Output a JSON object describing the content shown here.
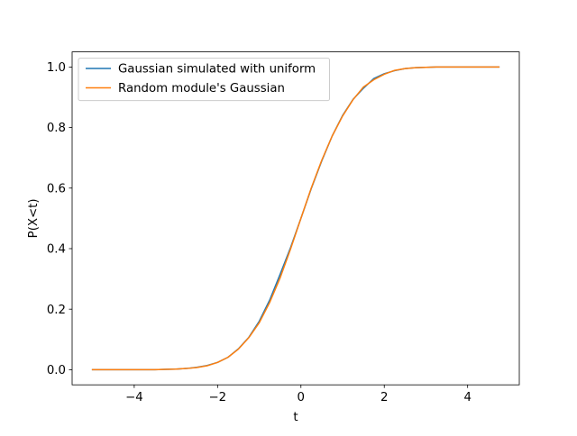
{
  "chart_data": {
    "type": "line",
    "title": "",
    "xlabel": "t",
    "ylabel": "P(X<t)",
    "xlim": [
      -5.49,
      5.24
    ],
    "ylim": [
      -0.05,
      1.05
    ],
    "x_ticks": [
      -4,
      -2,
      0,
      2,
      4
    ],
    "x_tick_labels": [
      "−4",
      "−2",
      "0",
      "2",
      "4"
    ],
    "y_ticks": [
      0.0,
      0.2,
      0.4,
      0.6,
      0.8,
      1.0
    ],
    "y_tick_labels": [
      "0.0",
      "0.2",
      "0.4",
      "0.6",
      "0.8",
      "1.0"
    ],
    "grid": false,
    "legend": {
      "placement": "upper-left"
    },
    "series": [
      {
        "name": "Gaussian simulated with uniform",
        "color": "#1f77b4",
        "x": [
          -5.0,
          -4.75,
          -4.5,
          -4.25,
          -4.0,
          -3.75,
          -3.5,
          -3.25,
          -3.0,
          -2.75,
          -2.5,
          -2.25,
          -2.0,
          -1.75,
          -1.5,
          -1.25,
          -1.0,
          -0.75,
          -0.5,
          -0.25,
          0.0,
          0.25,
          0.5,
          0.75,
          1.0,
          1.25,
          1.5,
          1.75,
          2.0,
          2.25,
          2.5,
          2.75,
          3.0,
          3.25,
          3.5,
          3.75,
          4.0,
          4.25,
          4.5,
          4.75
        ],
        "y": [
          0.0,
          0.0,
          0.0,
          0.0,
          0.0,
          0.0,
          0.0,
          0.001,
          0.002,
          0.004,
          0.008,
          0.014,
          0.024,
          0.041,
          0.069,
          0.107,
          0.16,
          0.23,
          0.315,
          0.403,
          0.5,
          0.599,
          0.69,
          0.772,
          0.84,
          0.893,
          0.93,
          0.962,
          0.978,
          0.988,
          0.995,
          0.998,
          0.999,
          1.0,
          1.0,
          1.0,
          1.0,
          1.0,
          1.0,
          1.0
        ]
      },
      {
        "name": "Random module's Gaussian",
        "color": "#ff7f0e",
        "x": [
          -5.0,
          -4.75,
          -4.5,
          -4.25,
          -4.0,
          -3.75,
          -3.5,
          -3.25,
          -3.0,
          -2.75,
          -2.5,
          -2.25,
          -2.0,
          -1.75,
          -1.5,
          -1.25,
          -1.0,
          -0.75,
          -0.5,
          -0.25,
          0.0,
          0.25,
          0.5,
          0.75,
          1.0,
          1.25,
          1.5,
          1.75,
          2.0,
          2.25,
          2.5,
          2.75,
          3.0,
          3.25,
          3.5,
          3.75,
          4.0,
          4.25,
          4.5,
          4.75
        ],
        "y": [
          0.0,
          0.0,
          0.0,
          0.0,
          0.0,
          0.0,
          0.0,
          0.001,
          0.002,
          0.004,
          0.007,
          0.013,
          0.024,
          0.041,
          0.068,
          0.106,
          0.155,
          0.222,
          0.303,
          0.398,
          0.5,
          0.601,
          0.692,
          0.772,
          0.838,
          0.892,
          0.934,
          0.958,
          0.976,
          0.989,
          0.995,
          0.998,
          0.999,
          1.0,
          1.0,
          1.0,
          1.0,
          1.0,
          1.0,
          1.0
        ]
      }
    ]
  }
}
